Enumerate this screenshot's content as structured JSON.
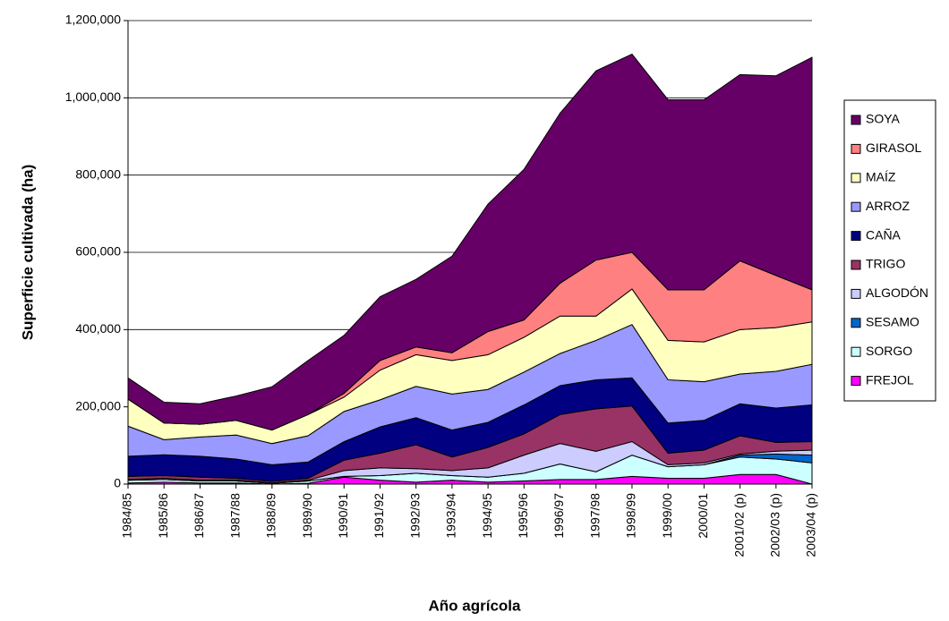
{
  "chart_data": {
    "type": "stacked_area",
    "xlabel": "Año agrícola",
    "ylabel": "Superficie cultivada (ha)",
    "categories": [
      "1984/85",
      "1985/86",
      "1986/87",
      "1987/88",
      "1988/89",
      "1989/90",
      "1990/91",
      "1991/92",
      "1992/93",
      "1993/94",
      "1994/95",
      "1995/96",
      "1996/97",
      "1997/98",
      "1998/99",
      "1999/00",
      "2000/01",
      "2001/02 (p)",
      "2002/03 (p)",
      "2003/04 (p)"
    ],
    "series": [
      {
        "name": "FREJOL",
        "color": "#ff00ff",
        "values": [
          3000,
          5000,
          3000,
          3000,
          0,
          2000,
          18000,
          10000,
          5000,
          10000,
          5000,
          8000,
          12000,
          12000,
          20000,
          15000,
          15000,
          25000,
          25000,
          0
        ]
      },
      {
        "name": "SORGO",
        "color": "#ccffff",
        "values": [
          7000,
          7000,
          5000,
          5000,
          2000,
          6000,
          2000,
          12000,
          23000,
          12000,
          13000,
          20000,
          40000,
          20000,
          55000,
          30000,
          35000,
          45000,
          40000,
          55000
        ]
      },
      {
        "name": "SESAMO",
        "color": "#0066cc",
        "values": [
          0,
          0,
          0,
          0,
          0,
          0,
          0,
          0,
          0,
          0,
          0,
          0,
          0,
          0,
          0,
          0,
          0,
          5000,
          13000,
          20000
        ]
      },
      {
        "name": "ALGODÓN",
        "color": "#ccccff",
        "values": [
          2000,
          3000,
          2000,
          2000,
          1000,
          2000,
          15000,
          20000,
          12000,
          13000,
          24000,
          47000,
          53000,
          53000,
          35000,
          5000,
          5000,
          3000,
          7000,
          13000
        ]
      },
      {
        "name": "TRIGO",
        "color": "#993366",
        "values": [
          8000,
          7000,
          8000,
          5000,
          4000,
          5000,
          27000,
          38000,
          62000,
          35000,
          53000,
          55000,
          75000,
          110000,
          92000,
          30000,
          33000,
          47000,
          23000,
          22000
        ]
      },
      {
        "name": "CAÑA",
        "color": "#000080",
        "values": [
          52000,
          54000,
          54000,
          50000,
          43000,
          42000,
          48000,
          68000,
          70000,
          70000,
          65000,
          75000,
          75000,
          75000,
          73000,
          78000,
          77000,
          83000,
          89000,
          95000
        ]
      },
      {
        "name": "ARROZ",
        "color": "#9999ff",
        "values": [
          78000,
          39000,
          50000,
          62000,
          55000,
          68000,
          78000,
          70000,
          81000,
          93000,
          85000,
          85000,
          83000,
          102000,
          138000,
          112000,
          100000,
          77000,
          95000,
          105000
        ]
      },
      {
        "name": "MAÍZ",
        "color": "#ffffc0",
        "values": [
          70000,
          43000,
          33000,
          38000,
          35000,
          55000,
          37000,
          77000,
          82000,
          87000,
          90000,
          90000,
          97000,
          63000,
          92000,
          102000,
          103000,
          115000,
          113000,
          110000
        ]
      },
      {
        "name": "GIRASOL",
        "color": "#ff8080",
        "values": [
          0,
          0,
          0,
          0,
          0,
          0,
          10000,
          25000,
          20000,
          20000,
          60000,
          45000,
          85000,
          145000,
          95000,
          131000,
          135000,
          178000,
          135000,
          83000
        ]
      },
      {
        "name": "SOYA",
        "color": "#660066",
        "values": [
          55000,
          54000,
          53000,
          63000,
          112000,
          140000,
          150000,
          165000,
          175000,
          250000,
          330000,
          390000,
          440000,
          490000,
          513000,
          492000,
          492000,
          482000,
          517000,
          602000
        ]
      }
    ],
    "ylim": [
      0,
      1200000
    ],
    "yticks": [
      0,
      {
        "value": 200000,
        "label": "200,000"
      },
      {
        "value": 400000,
        "label": "400,000"
      },
      {
        "value": 600000,
        "label": "600,000"
      },
      {
        "value": 800000,
        "label": "800,000"
      },
      {
        "value": 1000000,
        "label": "1,000,000"
      },
      {
        "value": 1200000,
        "label": "1,200,000"
      }
    ],
    "grid": true,
    "legend": "right"
  }
}
